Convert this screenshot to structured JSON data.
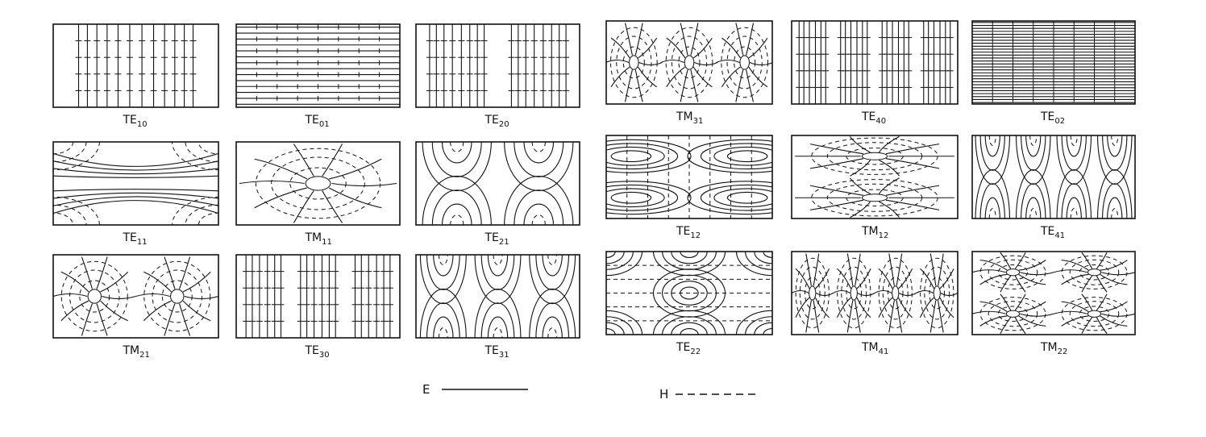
{
  "modes": [
    {
      "name": "TE",
      "sub": "10",
      "kind": "vlines"
    },
    {
      "name": "TE",
      "sub": "01",
      "kind": "hlines"
    },
    {
      "name": "TE",
      "sub": "20",
      "kind": "vlines2"
    },
    {
      "name": "TM",
      "sub": "31",
      "kind": "dipoles3"
    },
    {
      "name": "TE",
      "sub": "40",
      "kind": "vlines4"
    },
    {
      "name": "TE",
      "sub": "02",
      "kind": "hlines2"
    },
    {
      "name": "TE",
      "sub": "11",
      "kind": "saddle"
    },
    {
      "name": "TM",
      "sub": "11",
      "kind": "dipole1"
    },
    {
      "name": "TE",
      "sub": "21",
      "kind": "arcs2"
    },
    {
      "name": "TE",
      "sub": "12",
      "kind": "lobes"
    },
    {
      "name": "TM",
      "sub": "12",
      "kind": "dipoles-v"
    },
    {
      "name": "TE",
      "sub": "41",
      "kind": "arcs4"
    },
    {
      "name": "TM",
      "sub": "21",
      "kind": "dipoles2"
    },
    {
      "name": "TE",
      "sub": "30",
      "kind": "vlines3"
    },
    {
      "name": "TE",
      "sub": "31",
      "kind": "arcs3"
    },
    {
      "name": "TE",
      "sub": "22",
      "kind": "cells22"
    },
    {
      "name": "TM",
      "sub": "41",
      "kind": "dipoles4"
    },
    {
      "name": "TM",
      "sub": "22",
      "kind": "dipoles22"
    }
  ],
  "legend": {
    "e_label": "E",
    "h_label": "H"
  }
}
